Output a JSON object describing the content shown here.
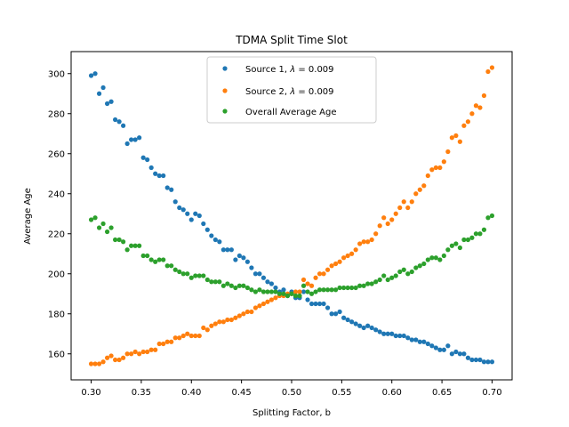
{
  "chart_data": {
    "type": "scatter",
    "title": "TDMA Split Time Slot",
    "xlabel": "Splitting Factor, b",
    "ylabel": "Average Age",
    "xlim": [
      0.28,
      0.72
    ],
    "ylim": [
      147,
      311
    ],
    "xticks": [
      0.3,
      0.35,
      0.4,
      0.45,
      0.5,
      0.55,
      0.6,
      0.65,
      0.7
    ],
    "xtick_labels": [
      "0.30",
      "0.35",
      "0.40",
      "0.45",
      "0.50",
      "0.55",
      "0.60",
      "0.65",
      "0.70"
    ],
    "yticks": [
      160,
      180,
      200,
      220,
      240,
      260,
      280,
      300
    ],
    "ytick_labels": [
      "160",
      "180",
      "200",
      "220",
      "240",
      "260",
      "280",
      "300"
    ],
    "grid": false,
    "legend_position": "top-center",
    "series": [
      {
        "name_prefix": "Source 1, ",
        "name_lambda": "λ",
        "name_suffix": " = 0.009",
        "color": "#1f77b4",
        "points": [
          [
            0.3,
            299
          ],
          [
            0.304,
            300
          ],
          [
            0.308,
            290
          ],
          [
            0.312,
            293
          ],
          [
            0.316,
            285
          ],
          [
            0.32,
            286
          ],
          [
            0.324,
            277
          ],
          [
            0.328,
            276
          ],
          [
            0.332,
            274
          ],
          [
            0.336,
            265
          ],
          [
            0.34,
            267
          ],
          [
            0.344,
            267
          ],
          [
            0.348,
            268
          ],
          [
            0.352,
            258
          ],
          [
            0.356,
            257
          ],
          [
            0.36,
            253
          ],
          [
            0.364,
            250
          ],
          [
            0.368,
            249
          ],
          [
            0.372,
            249
          ],
          [
            0.376,
            243
          ],
          [
            0.38,
            242
          ],
          [
            0.384,
            236
          ],
          [
            0.388,
            233
          ],
          [
            0.392,
            232
          ],
          [
            0.396,
            230
          ],
          [
            0.4,
            227
          ],
          [
            0.404,
            230
          ],
          [
            0.408,
            229
          ],
          [
            0.412,
            225
          ],
          [
            0.416,
            222
          ],
          [
            0.42,
            219
          ],
          [
            0.424,
            217
          ],
          [
            0.428,
            216
          ],
          [
            0.432,
            212
          ],
          [
            0.436,
            212
          ],
          [
            0.44,
            212
          ],
          [
            0.444,
            207
          ],
          [
            0.448,
            209
          ],
          [
            0.452,
            208
          ],
          [
            0.456,
            206
          ],
          [
            0.46,
            203
          ],
          [
            0.464,
            200
          ],
          [
            0.468,
            200
          ],
          [
            0.472,
            198
          ],
          [
            0.476,
            196
          ],
          [
            0.48,
            195
          ],
          [
            0.484,
            193
          ],
          [
            0.488,
            191
          ],
          [
            0.492,
            192
          ],
          [
            0.496,
            189
          ],
          [
            0.5,
            191
          ],
          [
            0.504,
            188
          ],
          [
            0.508,
            188
          ],
          [
            0.512,
            191
          ],
          [
            0.516,
            187
          ],
          [
            0.52,
            185
          ],
          [
            0.524,
            185
          ],
          [
            0.528,
            185
          ],
          [
            0.532,
            185
          ],
          [
            0.536,
            183
          ],
          [
            0.54,
            180
          ],
          [
            0.544,
            180
          ],
          [
            0.548,
            181
          ],
          [
            0.552,
            178
          ],
          [
            0.556,
            177
          ],
          [
            0.56,
            176
          ],
          [
            0.564,
            175
          ],
          [
            0.568,
            174
          ],
          [
            0.572,
            173
          ],
          [
            0.576,
            174
          ],
          [
            0.58,
            173
          ],
          [
            0.584,
            172
          ],
          [
            0.588,
            171
          ],
          [
            0.592,
            170
          ],
          [
            0.596,
            170
          ],
          [
            0.6,
            170
          ],
          [
            0.604,
            169
          ],
          [
            0.608,
            169
          ],
          [
            0.612,
            169
          ],
          [
            0.616,
            168
          ],
          [
            0.62,
            167
          ],
          [
            0.624,
            167
          ],
          [
            0.628,
            166
          ],
          [
            0.632,
            166
          ],
          [
            0.636,
            165
          ],
          [
            0.64,
            164
          ],
          [
            0.644,
            163
          ],
          [
            0.648,
            162
          ],
          [
            0.652,
            162
          ],
          [
            0.656,
            164
          ],
          [
            0.66,
            160
          ],
          [
            0.664,
            161
          ],
          [
            0.668,
            160
          ],
          [
            0.672,
            160
          ],
          [
            0.676,
            158
          ],
          [
            0.68,
            157
          ],
          [
            0.684,
            157
          ],
          [
            0.688,
            157
          ],
          [
            0.692,
            156
          ],
          [
            0.696,
            156
          ],
          [
            0.7,
            156
          ]
        ]
      },
      {
        "name_prefix": "Source 2, ",
        "name_lambda": "λ",
        "name_suffix": " = 0.009",
        "color": "#ff7f0e",
        "points": [
          [
            0.3,
            155
          ],
          [
            0.304,
            155
          ],
          [
            0.308,
            155
          ],
          [
            0.312,
            156
          ],
          [
            0.316,
            158
          ],
          [
            0.32,
            159
          ],
          [
            0.324,
            157
          ],
          [
            0.328,
            157
          ],
          [
            0.332,
            158
          ],
          [
            0.336,
            160
          ],
          [
            0.34,
            160
          ],
          [
            0.344,
            161
          ],
          [
            0.348,
            160
          ],
          [
            0.352,
            161
          ],
          [
            0.356,
            161
          ],
          [
            0.36,
            162
          ],
          [
            0.364,
            162
          ],
          [
            0.368,
            165
          ],
          [
            0.372,
            165
          ],
          [
            0.376,
            166
          ],
          [
            0.38,
            166
          ],
          [
            0.384,
            168
          ],
          [
            0.388,
            168
          ],
          [
            0.392,
            169
          ],
          [
            0.396,
            170
          ],
          [
            0.4,
            169
          ],
          [
            0.404,
            169
          ],
          [
            0.408,
            169
          ],
          [
            0.412,
            173
          ],
          [
            0.416,
            172
          ],
          [
            0.42,
            174
          ],
          [
            0.424,
            175
          ],
          [
            0.428,
            176
          ],
          [
            0.432,
            176
          ],
          [
            0.436,
            177
          ],
          [
            0.44,
            177
          ],
          [
            0.444,
            178
          ],
          [
            0.448,
            179
          ],
          [
            0.452,
            180
          ],
          [
            0.456,
            181
          ],
          [
            0.46,
            181
          ],
          [
            0.464,
            183
          ],
          [
            0.468,
            184
          ],
          [
            0.472,
            185
          ],
          [
            0.476,
            186
          ],
          [
            0.48,
            187
          ],
          [
            0.484,
            188
          ],
          [
            0.488,
            189
          ],
          [
            0.492,
            189
          ],
          [
            0.496,
            190
          ],
          [
            0.5,
            190
          ],
          [
            0.504,
            191
          ],
          [
            0.508,
            191
          ],
          [
            0.512,
            197
          ],
          [
            0.516,
            195
          ],
          [
            0.52,
            194
          ],
          [
            0.524,
            198
          ],
          [
            0.528,
            200
          ],
          [
            0.532,
            200
          ],
          [
            0.536,
            202
          ],
          [
            0.54,
            204
          ],
          [
            0.544,
            205
          ],
          [
            0.548,
            206
          ],
          [
            0.552,
            208
          ],
          [
            0.556,
            209
          ],
          [
            0.56,
            210
          ],
          [
            0.564,
            212
          ],
          [
            0.568,
            215
          ],
          [
            0.572,
            216
          ],
          [
            0.576,
            216
          ],
          [
            0.58,
            217
          ],
          [
            0.584,
            220
          ],
          [
            0.588,
            224
          ],
          [
            0.592,
            228
          ],
          [
            0.596,
            225
          ],
          [
            0.6,
            227
          ],
          [
            0.604,
            230
          ],
          [
            0.608,
            233
          ],
          [
            0.612,
            236
          ],
          [
            0.616,
            233
          ],
          [
            0.62,
            236
          ],
          [
            0.624,
            240
          ],
          [
            0.628,
            242
          ],
          [
            0.632,
            244
          ],
          [
            0.636,
            249
          ],
          [
            0.64,
            252
          ],
          [
            0.644,
            253
          ],
          [
            0.648,
            253
          ],
          [
            0.652,
            256
          ],
          [
            0.656,
            261
          ],
          [
            0.66,
            268
          ],
          [
            0.664,
            269
          ],
          [
            0.668,
            266
          ],
          [
            0.672,
            274
          ],
          [
            0.676,
            276
          ],
          [
            0.68,
            280
          ],
          [
            0.684,
            284
          ],
          [
            0.688,
            283
          ],
          [
            0.692,
            289
          ],
          [
            0.696,
            301
          ],
          [
            0.7,
            303
          ]
        ]
      },
      {
        "name_prefix": "Overall Average Age",
        "name_lambda": "",
        "name_suffix": "",
        "color": "#2ca02c",
        "points": [
          [
            0.3,
            227
          ],
          [
            0.304,
            228
          ],
          [
            0.308,
            223
          ],
          [
            0.312,
            225
          ],
          [
            0.316,
            221
          ],
          [
            0.32,
            223
          ],
          [
            0.324,
            217
          ],
          [
            0.328,
            217
          ],
          [
            0.332,
            216
          ],
          [
            0.336,
            212
          ],
          [
            0.34,
            214
          ],
          [
            0.344,
            214
          ],
          [
            0.348,
            214
          ],
          [
            0.352,
            209
          ],
          [
            0.356,
            209
          ],
          [
            0.36,
            207
          ],
          [
            0.364,
            206
          ],
          [
            0.368,
            207
          ],
          [
            0.372,
            207
          ],
          [
            0.376,
            204
          ],
          [
            0.38,
            204
          ],
          [
            0.384,
            202
          ],
          [
            0.388,
            201
          ],
          [
            0.392,
            200
          ],
          [
            0.396,
            200
          ],
          [
            0.4,
            198
          ],
          [
            0.404,
            199
          ],
          [
            0.408,
            199
          ],
          [
            0.412,
            199
          ],
          [
            0.416,
            197
          ],
          [
            0.42,
            196
          ],
          [
            0.424,
            196
          ],
          [
            0.428,
            196
          ],
          [
            0.432,
            194
          ],
          [
            0.436,
            195
          ],
          [
            0.44,
            194
          ],
          [
            0.444,
            193
          ],
          [
            0.448,
            194
          ],
          [
            0.452,
            194
          ],
          [
            0.456,
            193
          ],
          [
            0.46,
            192
          ],
          [
            0.464,
            191
          ],
          [
            0.468,
            192
          ],
          [
            0.472,
            191
          ],
          [
            0.476,
            191
          ],
          [
            0.48,
            191
          ],
          [
            0.484,
            191
          ],
          [
            0.488,
            190
          ],
          [
            0.492,
            190
          ],
          [
            0.496,
            189
          ],
          [
            0.5,
            190
          ],
          [
            0.504,
            189
          ],
          [
            0.508,
            189
          ],
          [
            0.512,
            194
          ],
          [
            0.516,
            191
          ],
          [
            0.52,
            190
          ],
          [
            0.524,
            191
          ],
          [
            0.528,
            192
          ],
          [
            0.532,
            192
          ],
          [
            0.536,
            192
          ],
          [
            0.54,
            192
          ],
          [
            0.544,
            192
          ],
          [
            0.548,
            193
          ],
          [
            0.552,
            193
          ],
          [
            0.556,
            193
          ],
          [
            0.56,
            193
          ],
          [
            0.564,
            193
          ],
          [
            0.568,
            194
          ],
          [
            0.572,
            194
          ],
          [
            0.576,
            195
          ],
          [
            0.58,
            195
          ],
          [
            0.584,
            196
          ],
          [
            0.588,
            197
          ],
          [
            0.592,
            199
          ],
          [
            0.596,
            197
          ],
          [
            0.6,
            198
          ],
          [
            0.604,
            199
          ],
          [
            0.608,
            201
          ],
          [
            0.612,
            202
          ],
          [
            0.616,
            200
          ],
          [
            0.62,
            201
          ],
          [
            0.624,
            203
          ],
          [
            0.628,
            204
          ],
          [
            0.632,
            205
          ],
          [
            0.636,
            207
          ],
          [
            0.64,
            208
          ],
          [
            0.644,
            208
          ],
          [
            0.648,
            207
          ],
          [
            0.652,
            209
          ],
          [
            0.656,
            212
          ],
          [
            0.66,
            214
          ],
          [
            0.664,
            215
          ],
          [
            0.668,
            213
          ],
          [
            0.672,
            217
          ],
          [
            0.676,
            217
          ],
          [
            0.68,
            218
          ],
          [
            0.684,
            220
          ],
          [
            0.688,
            220
          ],
          [
            0.692,
            222
          ],
          [
            0.696,
            228
          ],
          [
            0.7,
            229
          ]
        ]
      }
    ]
  }
}
